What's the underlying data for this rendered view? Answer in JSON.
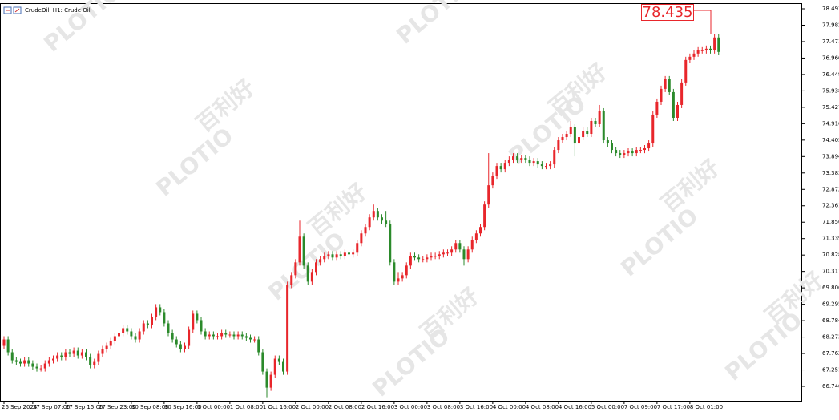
{
  "chart_data": {
    "type": "candlestick",
    "title": "CrudeOil, H1:  Crude Oil",
    "annotation": "78.435",
    "watermark": "PLOTIO",
    "watermark_cn": "百利好",
    "up_color": "#e8262b",
    "down_color": "#2b8a2b",
    "ylim": [
      66.291,
      78.643
    ],
    "yticks": [
      78.493,
      77.982,
      77.471,
      {
        "value": 76.96,
        "label": "76.960"
      },
      76.449,
      75.938,
      75.427,
      74.916,
      74.405,
      73.894,
      73.383,
      72.872,
      72.361,
      {
        "value": 71.85,
        "label": "71.850"
      },
      71.339,
      70.828,
      70.317,
      69.806,
      69.295,
      68.784,
      68.273,
      67.762,
      67.251,
      {
        "value": 66.74,
        "label": "66.740"
      }
    ],
    "categories": [
      "26 Sep 2024",
      null,
      null,
      null,
      null,
      null,
      null,
      "27 Sep 07:00",
      null,
      null,
      null,
      null,
      null,
      null,
      null,
      "27 Sep 15:00",
      null,
      null,
      null,
      null,
      null,
      null,
      null,
      "27 Sep 23:00",
      null,
      null,
      null,
      null,
      null,
      null,
      null,
      "30 Sep 08:00",
      null,
      null,
      null,
      null,
      null,
      null,
      null,
      "30 Sep 16:00",
      null,
      null,
      null,
      null,
      null,
      null,
      null,
      "1 Oct 00:00",
      null,
      null,
      null,
      null,
      null,
      null,
      null,
      "1 Oct 08:00",
      null,
      null,
      null,
      null,
      null,
      null,
      null,
      "1 Oct 16:00",
      null,
      null,
      null,
      null,
      null,
      null,
      null,
      "2 Oct 00:00",
      null,
      null,
      null,
      null,
      null,
      null,
      null,
      "2 Oct 08:00",
      null,
      null,
      null,
      null,
      null,
      null,
      null,
      "2 Oct 16:00",
      null,
      null,
      null,
      null,
      null,
      null,
      null,
      "3 Oct 00:00",
      null,
      null,
      null,
      null,
      null,
      null,
      null,
      "3 Oct 08:00",
      null,
      null,
      null,
      null,
      null,
      null,
      null,
      "3 Oct 16:00",
      null,
      null,
      null,
      null,
      null,
      null,
      null,
      "4 Oct 00:00",
      null,
      null,
      null,
      null,
      null,
      null,
      null,
      "4 Oct 08:00",
      null,
      null,
      null,
      null,
      null,
      null,
      null,
      "4 Oct 16:00",
      null,
      null,
      null,
      null,
      null,
      null,
      null,
      "5 Oct 00:00",
      null,
      null,
      null,
      null,
      null,
      null,
      null,
      "7 Oct 09:00",
      null,
      null,
      null,
      null,
      null,
      null,
      null,
      "7 Oct 17:00",
      null,
      null,
      null,
      null,
      null,
      null,
      null,
      "8 Oct 01:00",
      null,
      null,
      null,
      null,
      null,
      null,
      null
    ],
    "open": [
      68.0,
      68.2,
      67.8,
      67.55,
      67.5,
      67.45,
      67.55,
      67.45,
      67.35,
      67.3,
      67.3,
      67.45,
      67.55,
      67.6,
      67.7,
      67.65,
      67.8,
      67.75,
      67.85,
      67.7,
      67.8,
      67.65,
      67.4,
      67.5,
      67.75,
      67.9,
      68.0,
      68.15,
      68.3,
      68.4,
      68.55,
      68.45,
      68.3,
      68.2,
      68.45,
      68.7,
      68.65,
      68.9,
      69.2,
      69.05,
      68.7,
      68.4,
      68.2,
      68.05,
      67.9,
      68.0,
      68.5,
      69.0,
      68.8,
      68.45,
      68.3,
      68.35,
      68.3,
      68.3,
      68.4,
      68.35,
      68.35,
      68.3,
      68.35,
      68.3,
      68.25,
      68.2,
      68.2,
      67.8,
      67.2,
      66.7,
      67.1,
      67.6,
      67.5,
      67.2,
      69.9,
      70.2,
      70.6,
      71.4,
      70.5,
      70.0,
      70.3,
      70.6,
      70.7,
      70.8,
      70.85,
      70.75,
      70.85,
      70.8,
      70.9,
      70.85,
      70.9,
      71.2,
      71.5,
      71.7,
      72.0,
      72.2,
      72.0,
      71.9,
      71.8,
      70.6,
      70.0,
      70.1,
      70.2,
      70.5,
      70.8,
      70.75,
      70.7,
      70.7,
      70.75,
      70.8,
      70.8,
      70.85,
      70.9,
      70.9,
      71.0,
      71.2,
      71.0,
      70.7,
      71.0,
      71.3,
      71.5,
      71.7,
      72.4,
      73.0,
      73.3,
      73.6,
      73.5,
      73.7,
      73.8,
      73.9,
      73.8,
      73.85,
      73.8,
      73.7,
      73.75,
      73.65,
      73.6,
      73.6,
      73.65,
      74.1,
      74.4,
      74.5,
      74.6,
      74.8,
      74.3,
      74.5,
      74.7,
      74.6,
      75.0,
      74.9,
      75.3,
      74.4,
      74.3,
      74.1,
      74.0,
      73.95,
      74.0,
      74.05,
      74.0,
      74.1,
      74.1,
      74.15,
      74.3,
      75.2,
      75.6,
      76.0,
      76.3,
      75.9,
      75.1,
      75.5,
      76.2,
      76.9,
      77.0,
      77.1,
      77.2,
      77.2,
      77.25,
      77.2,
      77.6
    ],
    "high": [
      68.3,
      68.3,
      67.9,
      67.65,
      67.6,
      67.65,
      67.65,
      67.55,
      67.45,
      67.4,
      67.55,
      67.65,
      67.7,
      67.8,
      67.8,
      67.9,
      67.9,
      67.95,
      67.95,
      67.9,
      67.9,
      67.75,
      67.6,
      67.85,
      68.0,
      68.1,
      68.25,
      68.4,
      68.5,
      68.65,
      68.65,
      68.55,
      68.4,
      68.55,
      68.8,
      68.8,
      69.0,
      69.3,
      69.3,
      69.15,
      68.8,
      68.5,
      68.3,
      68.15,
      68.1,
      68.6,
      69.1,
      69.1,
      68.9,
      68.55,
      68.45,
      68.45,
      68.4,
      68.5,
      68.5,
      68.45,
      68.45,
      68.45,
      68.45,
      68.4,
      68.35,
      68.3,
      68.3,
      67.9,
      67.3,
      67.2,
      67.7,
      67.7,
      67.6,
      70.0,
      70.3,
      70.7,
      71.9,
      71.5,
      70.6,
      70.4,
      70.7,
      70.8,
      70.9,
      70.95,
      70.95,
      70.95,
      70.95,
      71.0,
      71.0,
      71.0,
      71.3,
      71.6,
      71.8,
      72.1,
      72.4,
      72.3,
      72.1,
      72.2,
      71.9,
      70.7,
      70.3,
      70.3,
      70.6,
      70.9,
      70.9,
      70.85,
      70.8,
      70.85,
      70.9,
      70.9,
      70.95,
      71.0,
      71.0,
      71.1,
      71.3,
      71.3,
      71.1,
      71.1,
      71.4,
      71.6,
      71.8,
      72.5,
      74.0,
      73.4,
      73.7,
      73.7,
      73.8,
      73.9,
      74.0,
      74.0,
      73.95,
      73.95,
      73.9,
      73.85,
      73.85,
      73.75,
      73.7,
      73.75,
      74.2,
      74.5,
      74.6,
      74.7,
      75.0,
      74.9,
      74.6,
      74.8,
      74.8,
      75.1,
      75.1,
      75.5,
      75.4,
      74.5,
      74.4,
      74.2,
      74.1,
      74.1,
      74.15,
      74.15,
      74.2,
      74.2,
      74.25,
      74.4,
      75.3,
      75.7,
      76.1,
      76.4,
      76.4,
      76.0,
      75.6,
      76.3,
      77.0,
      77.1,
      77.2,
      77.3,
      77.3,
      77.35,
      77.35,
      77.7,
      77.7
    ],
    "low": [
      67.9,
      67.7,
      67.45,
      67.4,
      67.35,
      67.35,
      67.35,
      67.25,
      67.2,
      67.2,
      67.2,
      67.35,
      67.45,
      67.5,
      67.55,
      67.55,
      67.65,
      67.65,
      67.6,
      67.6,
      67.55,
      67.3,
      67.3,
      67.4,
      67.65,
      67.8,
      67.9,
      68.05,
      68.2,
      68.3,
      68.35,
      68.2,
      68.1,
      68.1,
      68.35,
      68.55,
      68.55,
      68.8,
      68.95,
      68.6,
      68.3,
      68.1,
      67.95,
      67.8,
      67.8,
      67.9,
      68.4,
      68.7,
      68.35,
      68.2,
      68.2,
      68.2,
      68.2,
      68.2,
      68.25,
      68.25,
      68.2,
      68.2,
      68.2,
      68.15,
      68.1,
      68.1,
      67.7,
      67.1,
      66.4,
      66.6,
      67.0,
      67.4,
      67.1,
      67.1,
      69.8,
      70.1,
      70.5,
      70.4,
      69.9,
      69.9,
      70.2,
      70.5,
      70.6,
      70.7,
      70.65,
      70.65,
      70.7,
      70.7,
      70.75,
      70.75,
      70.8,
      71.1,
      71.4,
      71.6,
      71.9,
      71.9,
      71.8,
      71.7,
      70.5,
      69.9,
      69.9,
      70.0,
      70.1,
      70.4,
      70.65,
      70.6,
      70.6,
      70.6,
      70.65,
      70.7,
      70.7,
      70.75,
      70.8,
      70.8,
      70.9,
      70.9,
      70.5,
      70.6,
      70.9,
      71.2,
      71.4,
      71.6,
      72.3,
      72.9,
      73.2,
      73.4,
      73.4,
      73.6,
      73.7,
      73.7,
      73.7,
      73.7,
      73.6,
      73.6,
      73.55,
      73.5,
      73.5,
      73.5,
      73.55,
      74.0,
      74.3,
      74.4,
      74.5,
      73.9,
      74.2,
      74.4,
      74.5,
      74.5,
      74.8,
      74.8,
      74.3,
      74.2,
      74.0,
      73.9,
      73.85,
      73.85,
      73.9,
      73.9,
      73.9,
      74.0,
      74.0,
      74.05,
      74.2,
      75.1,
      75.5,
      75.9,
      75.8,
      75.0,
      75.0,
      75.4,
      76.1,
      76.8,
      76.9,
      77.0,
      77.1,
      77.1,
      77.1,
      77.1,
      77.05
    ],
    "close": [
      68.2,
      67.8,
      67.55,
      67.5,
      67.45,
      67.55,
      67.45,
      67.35,
      67.3,
      67.3,
      67.45,
      67.55,
      67.6,
      67.7,
      67.65,
      67.8,
      67.75,
      67.85,
      67.7,
      67.8,
      67.65,
      67.4,
      67.5,
      67.75,
      67.9,
      68.0,
      68.15,
      68.3,
      68.4,
      68.55,
      68.45,
      68.3,
      68.2,
      68.45,
      68.7,
      68.65,
      68.9,
      69.2,
      69.05,
      68.7,
      68.4,
      68.2,
      68.05,
      67.9,
      68.0,
      68.5,
      69.0,
      68.8,
      68.45,
      68.3,
      68.35,
      68.3,
      68.3,
      68.4,
      68.35,
      68.35,
      68.3,
      68.35,
      68.3,
      68.25,
      68.2,
      68.2,
      67.8,
      67.2,
      66.7,
      67.1,
      67.6,
      67.5,
      67.2,
      69.9,
      70.2,
      70.6,
      71.4,
      70.5,
      70.0,
      70.3,
      70.6,
      70.7,
      70.8,
      70.85,
      70.75,
      70.85,
      70.8,
      70.9,
      70.85,
      70.9,
      71.2,
      71.5,
      71.7,
      72.0,
      72.2,
      72.0,
      71.9,
      71.8,
      70.6,
      70.0,
      70.1,
      70.2,
      70.5,
      70.8,
      70.75,
      70.7,
      70.7,
      70.75,
      70.8,
      70.8,
      70.85,
      70.9,
      70.9,
      71.0,
      71.2,
      71.0,
      70.7,
      71.0,
      71.3,
      71.5,
      71.7,
      72.4,
      73.0,
      73.3,
      73.6,
      73.5,
      73.7,
      73.8,
      73.9,
      73.8,
      73.85,
      73.8,
      73.7,
      73.75,
      73.65,
      73.6,
      73.6,
      73.65,
      74.1,
      74.4,
      74.5,
      74.6,
      74.8,
      74.3,
      74.5,
      74.7,
      74.6,
      75.0,
      74.9,
      75.3,
      74.4,
      74.3,
      74.1,
      74.0,
      73.95,
      74.0,
      74.05,
      74.0,
      74.1,
      74.1,
      74.15,
      74.3,
      75.2,
      75.6,
      76.0,
      76.3,
      75.9,
      75.1,
      75.5,
      76.2,
      76.9,
      77.0,
      77.1,
      77.2,
      77.2,
      77.25,
      77.2,
      77.6,
      77.15
    ]
  }
}
